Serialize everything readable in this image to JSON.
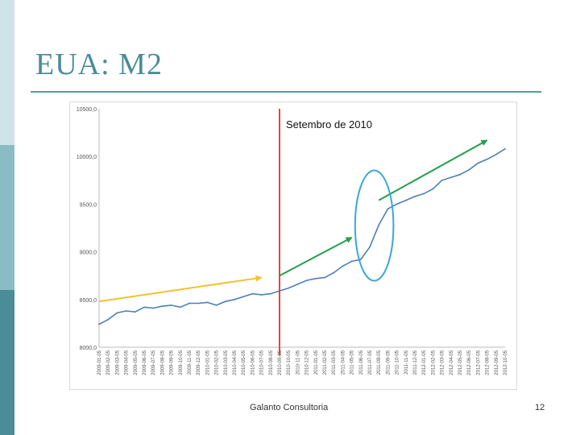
{
  "slide": {
    "title": "EUA: M2",
    "footer": "Galanto Consultoria",
    "page_number": "12",
    "accent_color": "#4a8c98"
  },
  "chart_data": {
    "type": "line",
    "title": "",
    "xlabel": "",
    "ylabel": "",
    "ylim": [
      8000,
      10500
    ],
    "y_ticks": [
      "8000,0",
      "8500,0",
      "9000,0",
      "9500,0",
      "10000,0",
      "10500,0"
    ],
    "x_tick_labels": [
      "2009-01-05",
      "2009-02-05",
      "2009-03-05",
      "2009-04-05",
      "2009-05-05",
      "2009-06-05",
      "2009-07-05",
      "2009-08-05",
      "2009-09-05",
      "2009-10-05",
      "2009-11-05",
      "2009-12-05",
      "2010-01-05",
      "2010-02-05",
      "2010-03-05",
      "2010-04-05",
      "2010-05-05",
      "2010-06-05",
      "2010-07-05",
      "2010-08-05",
      "2010-09-05",
      "2010-10-05",
      "2010-11-05",
      "2010-12-05",
      "2011-01-05",
      "2011-02-05",
      "2011-03-05",
      "2011-04-05",
      "2011-05-05",
      "2011-06-05",
      "2011-07-05",
      "2011-08-05",
      "2011-09-05",
      "2011-10-05",
      "2011-11-05",
      "2011-12-05",
      "2012-01-05",
      "2012-02-05",
      "2012-03-05",
      "2012-04-05",
      "2012-05-05",
      "2012-06-05",
      "2012-07-05",
      "2012-08-05",
      "2012-09-05",
      "2012-10-05"
    ],
    "series": [
      {
        "color": "#4f7fb8",
        "values": [
          8240,
          8290,
          8360,
          8380,
          8370,
          8420,
          8410,
          8430,
          8440,
          8420,
          8460,
          8460,
          8470,
          8440,
          8480,
          8500,
          8530,
          8560,
          8550,
          8560,
          8590,
          8620,
          8660,
          8700,
          8720,
          8730,
          8780,
          8850,
          8900,
          8920,
          9050,
          9280,
          9450,
          9500,
          9540,
          9580,
          9610,
          9660,
          9750,
          9780,
          9810,
          9860,
          9930,
          9970,
          10020,
          10080
        ]
      }
    ],
    "annotations": {
      "vline_label": "Setembro de 2010",
      "vline_index": 20,
      "vline_color": "#e03030",
      "arrows": [
        {
          "color": "#f2c12e",
          "from": {
            "index": 0,
            "value": 8480
          },
          "to": {
            "index": 18,
            "value": 8730
          }
        },
        {
          "color": "#22a04b",
          "from": {
            "index": 20,
            "value": 8750
          },
          "to": {
            "index": 28,
            "value": 9150
          }
        },
        {
          "color": "#22a04b",
          "from": {
            "index": 31,
            "value": 9540
          },
          "to": {
            "index": 43,
            "value": 10170
          }
        }
      ],
      "highlight_color": "#39a7d8"
    }
  }
}
